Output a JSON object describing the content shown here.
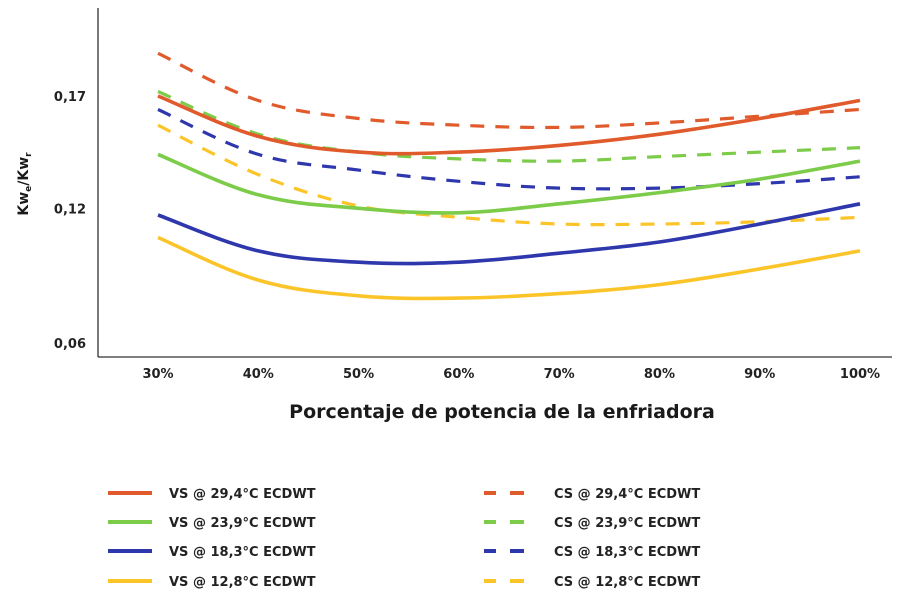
{
  "chart_data": {
    "type": "line",
    "title": "",
    "xlabel": "Porcentaje de potencia de la enfriadora",
    "ylabel": {
      "main1": "Kw",
      "sub1": "e",
      "sep": "/Kw",
      "sub2": "r"
    },
    "categories": [
      "30%",
      "40%",
      "50%",
      "60%",
      "70%",
      "80%",
      "90%",
      "100%"
    ],
    "yticks": [
      {
        "value": 0.06,
        "label": "0,06"
      },
      {
        "value": 0.12,
        "label": "0,12"
      },
      {
        "value": 0.17,
        "label": "0,17"
      }
    ],
    "ylim": [
      0.05,
      0.2
    ],
    "grid": false,
    "legend_position": "bottom",
    "series": [
      {
        "name": "VS @ 29,4°C ECDWT",
        "color": "#e05a2b",
        "dash": false,
        "values": [
          0.17,
          0.152,
          0.145,
          0.145,
          0.148,
          0.153,
          0.16,
          0.168
        ]
      },
      {
        "name": "CS @ 29,4°C ECDWT",
        "color": "#e05a2b",
        "dash": true,
        "values": [
          0.189,
          0.168,
          0.16,
          0.157,
          0.156,
          0.158,
          0.161,
          0.164
        ]
      },
      {
        "name": "VS @ 23,9°C ECDWT",
        "color": "#7ccc4a",
        "dash": false,
        "values": [
          0.144,
          0.126,
          0.12,
          0.118,
          0.122,
          0.127,
          0.133,
          0.141
        ]
      },
      {
        "name": "CS @ 23,9°C ECDWT",
        "color": "#7ccc4a",
        "dash": true,
        "values": [
          0.172,
          0.153,
          0.145,
          0.142,
          0.141,
          0.143,
          0.145,
          0.147
        ]
      },
      {
        "name": "VS @ 18,3°C ECDWT",
        "color": "#2f37ad",
        "dash": false,
        "values": [
          0.117,
          0.101,
          0.096,
          0.096,
          0.1,
          0.105,
          0.113,
          0.122
        ]
      },
      {
        "name": "CS @ 18,3°C ECDWT",
        "color": "#2f37ad",
        "dash": true,
        "values": [
          0.164,
          0.144,
          0.137,
          0.132,
          0.129,
          0.129,
          0.131,
          0.134
        ]
      },
      {
        "name": "VS @ 12,8°C ECDWT",
        "color": "#fbc52a",
        "dash": false,
        "values": [
          0.107,
          0.088,
          0.081,
          0.08,
          0.082,
          0.086,
          0.093,
          0.101
        ]
      },
      {
        "name": "CS @ 12,8°C ECDWT",
        "color": "#fbc52a",
        "dash": true,
        "values": [
          0.157,
          0.135,
          0.121,
          0.116,
          0.113,
          0.113,
          0.114,
          0.116
        ]
      }
    ],
    "legend": {
      "left": [
        "VS @ 29,4°C ECDWT",
        "VS @ 23,9°C ECDWT",
        "VS @ 18,3°C ECDWT",
        "VS @ 12,8°C ECDWT"
      ],
      "right": [
        "CS @ 29,4°C ECDWT",
        "CS @ 23,9°C ECDWT",
        "CS @ 18,3°C ECDWT",
        "CS @ 12,8°C ECDWT"
      ]
    }
  }
}
